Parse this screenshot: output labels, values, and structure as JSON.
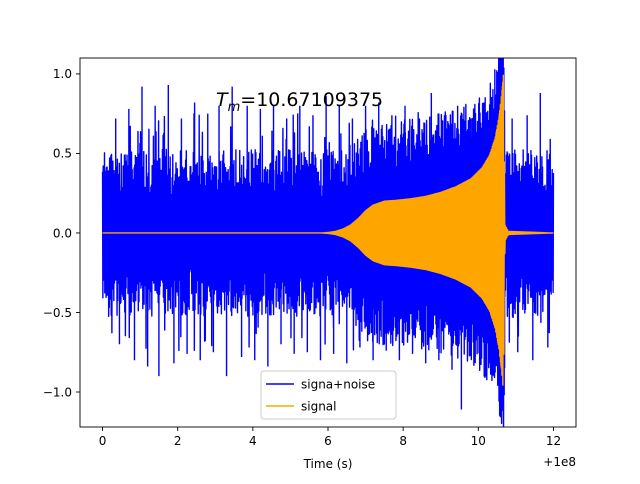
{
  "chart_data": {
    "type": "line",
    "annotation": "T_m=10.67109375",
    "annotation_base": "T",
    "annotation_sub": "m",
    "annotation_rest": "=10.67109375",
    "xlabel": "Time (s)",
    "ylabel": "",
    "x_offset_label": "+1e8",
    "xlim": [
      -0.6,
      12.6
    ],
    "ylim": [
      -1.22,
      1.1
    ],
    "xticks": [
      0,
      2,
      4,
      6,
      8,
      10,
      12
    ],
    "xtick_labels": [
      "0",
      "2",
      "4",
      "6",
      "8",
      "10",
      "12"
    ],
    "yticks": [
      -1.0,
      -0.5,
      0.0,
      0.5,
      1.0
    ],
    "ytick_labels": [
      "−1.0",
      "−0.5",
      "0.0",
      "0.5",
      "1.0"
    ],
    "grid": false,
    "legend_position": "bottom-center",
    "merger_time": 10.67109375,
    "series": [
      {
        "name": "signa+noise",
        "color": "#0000ff",
        "x_range": [
          0,
          12
        ],
        "noise_band": [
          -0.5,
          0.5
        ],
        "peaks": [
          {
            "x": 0.35,
            "y": 0.72
          },
          {
            "x": 0.7,
            "y": 0.78
          },
          {
            "x": 1.05,
            "y": 0.92
          },
          {
            "x": 1.4,
            "y": 0.8
          },
          {
            "x": 1.75,
            "y": 0.93
          },
          {
            "x": 2.1,
            "y": 0.72
          },
          {
            "x": 2.45,
            "y": 0.82
          },
          {
            "x": 2.8,
            "y": 0.75
          },
          {
            "x": 3.1,
            "y": 0.8
          },
          {
            "x": 3.45,
            "y": 0.92
          },
          {
            "x": 3.85,
            "y": 0.8
          },
          {
            "x": 4.2,
            "y": 0.78
          },
          {
            "x": 4.55,
            "y": 0.8
          },
          {
            "x": 4.9,
            "y": 0.72
          },
          {
            "x": 5.25,
            "y": 0.8
          },
          {
            "x": 5.6,
            "y": 0.74
          },
          {
            "x": 5.95,
            "y": 0.86
          },
          {
            "x": 6.3,
            "y": 0.8
          },
          {
            "x": 6.65,
            "y": 0.72
          },
          {
            "x": 7.0,
            "y": 0.8
          },
          {
            "x": 7.35,
            "y": 0.82
          },
          {
            "x": 7.7,
            "y": 0.74
          },
          {
            "x": 8.05,
            "y": 0.8
          },
          {
            "x": 8.4,
            "y": 0.76
          },
          {
            "x": 8.75,
            "y": 0.88
          },
          {
            "x": 9.1,
            "y": 0.74
          },
          {
            "x": 9.45,
            "y": 0.8
          },
          {
            "x": 9.8,
            "y": 0.72
          },
          {
            "x": 10.15,
            "y": 0.82
          },
          {
            "x": 10.5,
            "y": 0.95
          },
          {
            "x": 10.9,
            "y": 0.72
          },
          {
            "x": 11.3,
            "y": 0.74
          },
          {
            "x": 11.65,
            "y": 0.88
          }
        ],
        "troughs": [
          {
            "x": 0.45,
            "y": -0.7
          },
          {
            "x": 0.85,
            "y": -0.8
          },
          {
            "x": 1.2,
            "y": -0.84
          },
          {
            "x": 1.5,
            "y": -0.9
          },
          {
            "x": 1.9,
            "y": -0.82
          },
          {
            "x": 2.25,
            "y": -0.76
          },
          {
            "x": 2.6,
            "y": -0.8
          },
          {
            "x": 2.95,
            "y": -0.75
          },
          {
            "x": 3.3,
            "y": -0.9
          },
          {
            "x": 3.7,
            "y": -0.78
          },
          {
            "x": 4.05,
            "y": -0.8
          },
          {
            "x": 4.4,
            "y": -0.84
          },
          {
            "x": 4.75,
            "y": -0.7
          },
          {
            "x": 5.1,
            "y": -0.76
          },
          {
            "x": 5.45,
            "y": -0.75
          },
          {
            "x": 5.8,
            "y": -0.8
          },
          {
            "x": 6.15,
            "y": -0.76
          },
          {
            "x": 6.5,
            "y": -0.82
          },
          {
            "x": 6.85,
            "y": -0.72
          },
          {
            "x": 7.2,
            "y": -0.8
          },
          {
            "x": 7.55,
            "y": -0.74
          },
          {
            "x": 7.9,
            "y": -0.8
          },
          {
            "x": 8.25,
            "y": -0.76
          },
          {
            "x": 8.6,
            "y": -0.82
          },
          {
            "x": 8.95,
            "y": -0.8
          },
          {
            "x": 9.3,
            "y": -0.86
          },
          {
            "x": 9.55,
            "y": -1.11
          },
          {
            "x": 9.9,
            "y": -0.78
          },
          {
            "x": 10.3,
            "y": -0.82
          },
          {
            "x": 10.7,
            "y": -0.85
          },
          {
            "x": 11.05,
            "y": -0.75
          },
          {
            "x": 11.45,
            "y": -0.8
          },
          {
            "x": 11.85,
            "y": -0.72
          }
        ]
      },
      {
        "name": "signal",
        "color": "#ffa500",
        "x_range": [
          0,
          12
        ],
        "envelope": [
          {
            "x": 0,
            "y": 0.0
          },
          {
            "x": 5.8,
            "y": 0.0
          },
          {
            "x": 6.0,
            "y": 0.003
          },
          {
            "x": 6.2,
            "y": 0.01
          },
          {
            "x": 6.4,
            "y": 0.025
          },
          {
            "x": 6.6,
            "y": 0.05
          },
          {
            "x": 6.8,
            "y": 0.09
          },
          {
            "x": 7.0,
            "y": 0.14
          },
          {
            "x": 7.2,
            "y": 0.175
          },
          {
            "x": 7.5,
            "y": 0.2
          },
          {
            "x": 7.8,
            "y": 0.205
          },
          {
            "x": 8.2,
            "y": 0.215
          },
          {
            "x": 8.6,
            "y": 0.23
          },
          {
            "x": 9.0,
            "y": 0.255
          },
          {
            "x": 9.4,
            "y": 0.29
          },
          {
            "x": 9.8,
            "y": 0.34
          },
          {
            "x": 10.1,
            "y": 0.41
          },
          {
            "x": 10.3,
            "y": 0.49
          },
          {
            "x": 10.45,
            "y": 0.6
          },
          {
            "x": 10.55,
            "y": 0.73
          },
          {
            "x": 10.62,
            "y": 0.87
          },
          {
            "x": 10.67,
            "y": 1.0
          },
          {
            "x": 10.71,
            "y": 0.05
          },
          {
            "x": 10.8,
            "y": 0.01
          },
          {
            "x": 12,
            "y": 0.0
          }
        ]
      }
    ]
  }
}
